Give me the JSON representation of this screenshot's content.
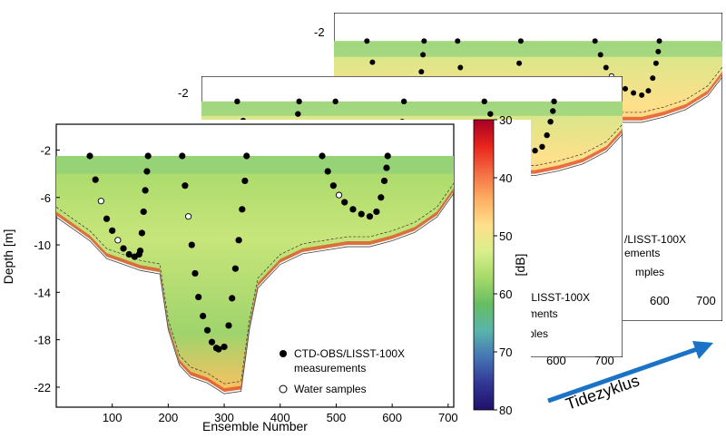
{
  "chart_data": {
    "type": "heatmap",
    "title": "",
    "xlabel": "Ensemble Number",
    "ylabel": "Depth [m]",
    "x_ticks": [
      100,
      200,
      300,
      400,
      500,
      600,
      700
    ],
    "y_ticks": [
      -2,
      -6,
      -10,
      -14,
      -18,
      -22
    ],
    "xlim": [
      0,
      710
    ],
    "ylim": [
      -23,
      -1.2
    ],
    "colorbar": {
      "label": "[dB]",
      "ticks": [
        30,
        40,
        50,
        60,
        70,
        80
      ],
      "range": [
        30,
        80
      ],
      "colors": [
        "#a50026",
        "#e8241c",
        "#f46d43",
        "#fdae61",
        "#fee08b",
        "#d9ef8b",
        "#a6d96a",
        "#66bd63",
        "#5ab4ac",
        "#4575b4",
        "#313695",
        "#20106a"
      ]
    },
    "legend": [
      {
        "label": "CTD-OBS/LISST-100X",
        "marker": "filled-circle"
      },
      {
        "label": "measurements",
        "marker": "none"
      },
      {
        "label": "Water samples",
        "marker": "open-circle"
      }
    ],
    "series": [
      {
        "x": [
          60,
          70,
          80,
          90,
          100,
          110,
          120,
          130,
          140,
          148
        ],
        "y": [
          -2.5,
          -4.5,
          -6.3,
          -7.8,
          -8.8,
          -9.6,
          -10.3,
          -10.8,
          -11.0,
          -10.8
        ]
      },
      {
        "x": [
          150,
          153,
          156,
          159,
          162,
          164
        ],
        "y": [
          -10.5,
          -9.0,
          -7.2,
          -5.4,
          -3.8,
          -2.5
        ]
      },
      {
        "x": [
          225,
          230,
          236,
          242,
          248,
          254,
          262,
          270,
          278,
          286
        ],
        "y": [
          -2.5,
          -5.0,
          -7.6,
          -10.0,
          -12.4,
          -14.4,
          -16.0,
          -17.2,
          -18.2,
          -18.7
        ]
      },
      {
        "x": [
          290,
          300,
          308,
          314,
          320,
          326,
          332,
          337,
          340
        ],
        "y": [
          -18.8,
          -18.6,
          -16.8,
          -14.5,
          -12.0,
          -9.6,
          -7.0,
          -4.6,
          -2.5
        ]
      },
      {
        "x": [
          475,
          485,
          495,
          505,
          515,
          530,
          545,
          560
        ],
        "y": [
          -2.5,
          -3.8,
          -5.0,
          -5.8,
          -6.4,
          -7.0,
          -7.4,
          -7.6
        ]
      },
      {
        "x": [
          572,
          580,
          586,
          590,
          592
        ],
        "y": [
          -7.2,
          -6.0,
          -4.6,
          -3.5,
          -2.5
        ]
      }
    ],
    "water_samples": [
      [
        80,
        -6.3
      ],
      [
        110,
        -9.6
      ],
      [
        236,
        -7.6
      ],
      [
        505,
        -5.8
      ]
    ],
    "bed_depth": [
      [
        0,
        -7.5
      ],
      [
        30,
        -8.5
      ],
      [
        60,
        -9.5
      ],
      [
        90,
        -11
      ],
      [
        120,
        -11.5
      ],
      [
        150,
        -12
      ],
      [
        185,
        -12.3
      ],
      [
        200,
        -17
      ],
      [
        220,
        -20
      ],
      [
        240,
        -21
      ],
      [
        270,
        -21.5
      ],
      [
        300,
        -22.4
      ],
      [
        330,
        -22.2
      ],
      [
        345,
        -17
      ],
      [
        360,
        -13.5
      ],
      [
        400,
        -11.5
      ],
      [
        440,
        -10.6
      ],
      [
        480,
        -10.3
      ],
      [
        520,
        -10
      ],
      [
        560,
        -10
      ],
      [
        600,
        -9.5
      ],
      [
        640,
        -8.8
      ],
      [
        680,
        -7.5
      ],
      [
        710,
        -5.5
      ]
    ],
    "secondary_axis": {
      "y_tick": [
        -2
      ],
      "x_ticks": [
        600,
        700
      ]
    },
    "partial_labels": {
      "middle": [
        "/LISST-100X",
        "ments",
        "ples"
      ],
      "back": [
        "/LISST-100X",
        "ements",
        "mples"
      ]
    }
  },
  "arrow_label": "Tidezyklus",
  "arrow_color": "#1a73c7"
}
